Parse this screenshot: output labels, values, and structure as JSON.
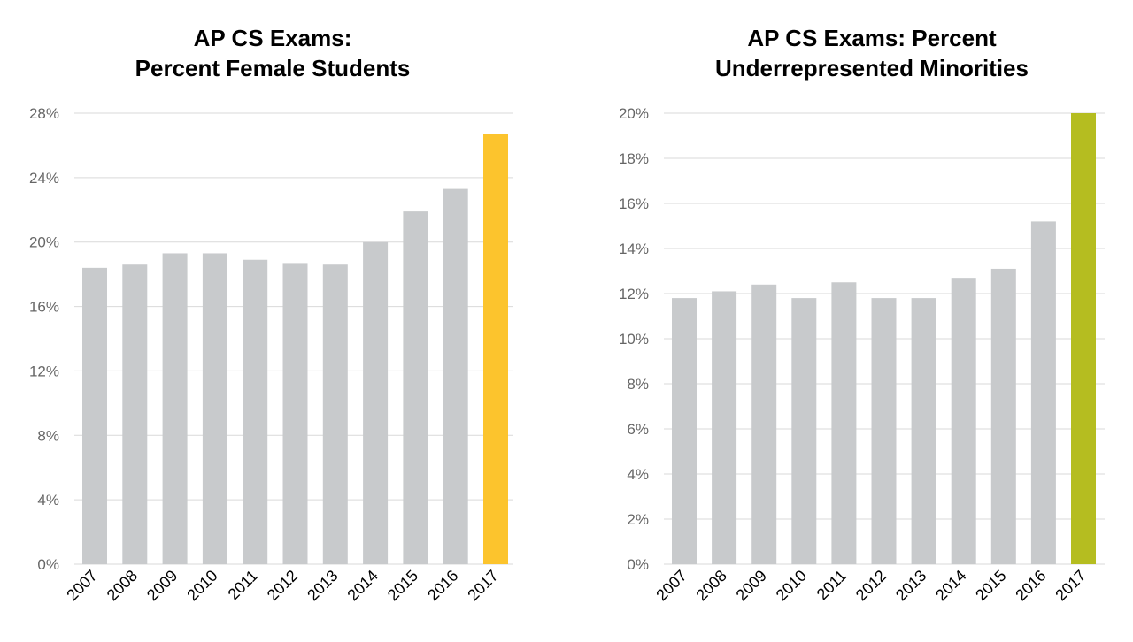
{
  "chart_data": [
    {
      "type": "bar",
      "title_line1": "AP CS Exams:",
      "title_line2": "Percent Female Students",
      "categories": [
        "2007",
        "2008",
        "2009",
        "2010",
        "2011",
        "2012",
        "2013",
        "2014",
        "2015",
        "2016",
        "2017"
      ],
      "values": [
        18.4,
        18.6,
        19.3,
        19.3,
        18.9,
        18.7,
        18.6,
        20.0,
        21.9,
        23.3,
        26.7
      ],
      "yticks": [
        0,
        4,
        8,
        12,
        16,
        20,
        24,
        28
      ],
      "ytick_labels": [
        "0%",
        "4%",
        "8%",
        "12%",
        "16%",
        "20%",
        "24%",
        "28%"
      ],
      "ylim": [
        0,
        28
      ],
      "xlabel": "",
      "ylabel": "",
      "grid": true,
      "bar_color": "#c8cacc",
      "highlight_index": 10,
      "highlight_color": "#fcc42d"
    },
    {
      "type": "bar",
      "title_line1": "AP CS Exams: Percent",
      "title_line2": "Underrepresented Minorities",
      "categories": [
        "2007",
        "2008",
        "2009",
        "2010",
        "2011",
        "2012",
        "2013",
        "2014",
        "2015",
        "2016",
        "2017"
      ],
      "values": [
        11.8,
        12.1,
        12.4,
        11.8,
        12.5,
        11.8,
        11.8,
        12.7,
        13.1,
        15.2,
        20.0
      ],
      "yticks": [
        0,
        2,
        4,
        6,
        8,
        10,
        12,
        14,
        16,
        18,
        20
      ],
      "ytick_labels": [
        "0%",
        "2%",
        "4%",
        "6%",
        "8%",
        "10%",
        "12%",
        "14%",
        "16%",
        "18%",
        "20%"
      ],
      "ylim": [
        0,
        20
      ],
      "xlabel": "",
      "ylabel": "",
      "grid": true,
      "bar_color": "#c8cacc",
      "highlight_index": 10,
      "highlight_color": "#b5bd20"
    }
  ],
  "colors": {
    "grid": "#d9d9d9",
    "tick_text": "#666666",
    "year_text": "#000000"
  }
}
